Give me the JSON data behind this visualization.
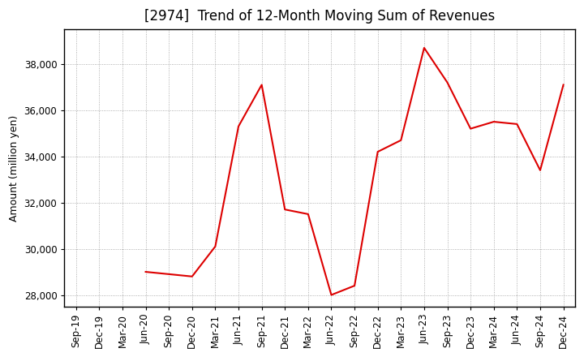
{
  "title": "[2974]  Trend of 12-Month Moving Sum of Revenues",
  "ylabel": "Amount (million yen)",
  "line_color": "#DD0000",
  "background_color": "#FFFFFF",
  "plot_bg_color": "#FFFFFF",
  "grid_color": "#999999",
  "labels": [
    "Sep-19",
    "Dec-19",
    "Mar-20",
    "Jun-20",
    "Sep-20",
    "Dec-20",
    "Mar-21",
    "Jun-21",
    "Sep-21",
    "Dec-21",
    "Mar-22",
    "Jun-22",
    "Sep-22",
    "Dec-22",
    "Mar-23",
    "Jun-23",
    "Sep-23",
    "Dec-23",
    "Mar-24",
    "Jun-24",
    "Sep-24",
    "Dec-24"
  ],
  "values": [
    null,
    null,
    null,
    29000,
    28900,
    28800,
    30100,
    35300,
    37100,
    31700,
    31500,
    28000,
    28400,
    34200,
    34700,
    38700,
    37200,
    35200,
    35500,
    35400,
    33400,
    37100
  ],
  "ylim": [
    27500,
    39500
  ],
  "yticks": [
    28000,
    30000,
    32000,
    34000,
    36000,
    38000
  ],
  "title_fontsize": 12,
  "axis_fontsize": 9,
  "tick_fontsize": 8.5
}
